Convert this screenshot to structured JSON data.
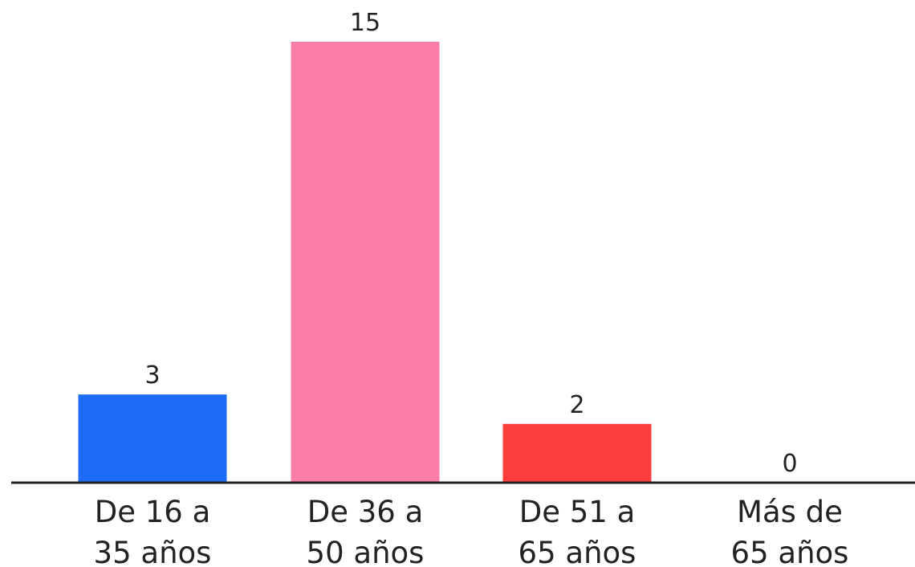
{
  "chart_data": {
    "type": "bar",
    "categories": [
      [
        "De 16 a",
        "35 años"
      ],
      [
        "De 36 a",
        "50 años"
      ],
      [
        "De 51 a",
        "65 años"
      ],
      [
        "Más de",
        "65 años"
      ]
    ],
    "values": [
      3,
      15,
      2,
      0
    ],
    "value_labels": [
      "3",
      "15",
      "2",
      "0"
    ],
    "colors": [
      "#1e6bf5",
      "#fb7ea8",
      "#fb3d3b",
      "#ffffff"
    ],
    "axis_color": "#222222",
    "ylim": [
      0,
      15
    ],
    "grid": false,
    "legend": "none",
    "title": "",
    "xlabel": "",
    "ylabel": ""
  }
}
